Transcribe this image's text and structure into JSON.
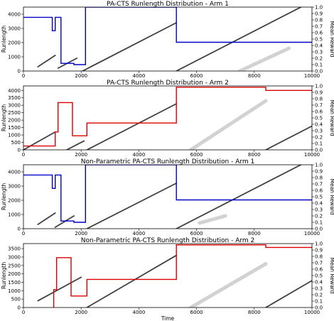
{
  "chart_data": [
    {
      "type": "line",
      "title": "PA-CTS Runlength Distribution - Arm 1",
      "xlabel": "",
      "ylabel": "Runlength",
      "y2label": "Mean Reward",
      "xlim": [
        0,
        10000
      ],
      "ylim": [
        0,
        4500
      ],
      "y2lim": [
        0,
        1.0
      ],
      "xticks": [
        0,
        2000,
        4000,
        6000,
        8000,
        10000
      ],
      "yticks": [
        0,
        1000,
        2000,
        3000,
        4000
      ],
      "y2ticks": [
        0.0,
        0.1,
        0.2,
        0.3,
        0.4,
        0.5,
        0.6,
        0.7,
        0.8,
        0.9,
        1.0
      ],
      "runlength_bands": [
        {
          "x": [
            500,
            1100
          ],
          "y": [
            300,
            1100
          ],
          "shade": "dark"
        },
        {
          "x": [
            1200,
            1850
          ],
          "y": [
            200,
            900
          ],
          "shade": "dark"
        },
        {
          "x": [
            2050,
            5300
          ],
          "y": [
            0,
            3400
          ],
          "shade": "dark"
        },
        {
          "x": [
            5300,
            10000
          ],
          "y": [
            0,
            4900
          ],
          "shade": "dark"
        },
        {
          "x": [
            7500,
            9200
          ],
          "y": [
            0,
            1600
          ],
          "shade": "light"
        }
      ],
      "series": [
        {
          "color": "#0000cc",
          "x": [
            0,
            1000,
            1000,
            1100,
            1100,
            1300,
            1300,
            1750,
            1750,
            2150,
            2150,
            5300,
            5300,
            10000
          ],
          "y": [
            0.84,
            0.84,
            0.63,
            0.63,
            0.84,
            0.84,
            0.12,
            0.12,
            0.1,
            0.1,
            1.0,
            1.0,
            0.45,
            0.45
          ]
        }
      ]
    },
    {
      "type": "line",
      "title": "PA-CTS Runlength Distribution - Arm 2",
      "xlabel": "",
      "ylabel": "Runlength",
      "y2label": "Mean Reward",
      "xlim": [
        0,
        10000
      ],
      "ylim": [
        0,
        4300
      ],
      "y2lim": [
        0,
        1.0
      ],
      "xticks": [
        0,
        2000,
        4000,
        6000,
        8000,
        10000
      ],
      "yticks": [
        0,
        500,
        1000,
        1500,
        2000,
        2500,
        3000,
        3500,
        4000
      ],
      "y2ticks": [
        0.0,
        0.1,
        0.2,
        0.3,
        0.4,
        0.5,
        0.6,
        0.7,
        0.8,
        0.9,
        1.0
      ],
      "runlength_bands": [
        {
          "x": [
            0,
            1100
          ],
          "y": [
            0,
            1200
          ],
          "shade": "dark"
        },
        {
          "x": [
            1500,
            2100
          ],
          "y": [
            0,
            600
          ],
          "shade": "dark"
        },
        {
          "x": [
            2200,
            5300
          ],
          "y": [
            0,
            3100
          ],
          "shade": "dark"
        },
        {
          "x": [
            5800,
            8400
          ],
          "y": [
            0,
            3300
          ],
          "shade": "light"
        },
        {
          "x": [
            8400,
            10000
          ],
          "y": [
            0,
            1600
          ],
          "shade": "dark"
        }
      ],
      "series": [
        {
          "color": "#dd0000",
          "x": [
            0,
            1100,
            1100,
            1200,
            1200,
            1700,
            1700,
            2200,
            2200,
            5300,
            5300,
            8400,
            8400,
            10000
          ],
          "y": [
            0.06,
            0.06,
            0.28,
            0.28,
            0.74,
            0.74,
            0.22,
            0.22,
            0.42,
            0.42,
            0.98,
            0.98,
            0.93,
            0.93
          ]
        }
      ]
    },
    {
      "type": "line",
      "title": "Non-Parametric PA-CTS Runlength Distribution - Arm 1",
      "xlabel": "",
      "ylabel": "Runlength",
      "y2label": "Mean Reward",
      "xlim": [
        0,
        10000
      ],
      "ylim": [
        0,
        4500
      ],
      "y2lim": [
        0,
        1.0
      ],
      "xticks": [
        0,
        2000,
        4000,
        6000,
        8000,
        10000
      ],
      "yticks": [
        0,
        1000,
        2000,
        3000,
        4000
      ],
      "y2ticks": [
        0.0,
        0.1,
        0.2,
        0.3,
        0.4,
        0.5,
        0.6,
        0.7,
        0.8,
        0.9,
        1.0
      ],
      "runlength_bands": [
        {
          "x": [
            500,
            1100
          ],
          "y": [
            300,
            1100
          ],
          "shade": "dark"
        },
        {
          "x": [
            1100,
            1750
          ],
          "y": [
            100,
            900
          ],
          "shade": "dark"
        },
        {
          "x": [
            2200,
            5300
          ],
          "y": [
            0,
            3200
          ],
          "shade": "dark"
        },
        {
          "x": [
            5300,
            10000
          ],
          "y": [
            0,
            4900
          ],
          "shade": "dark"
        },
        {
          "x": [
            6100,
            7000
          ],
          "y": [
            400,
            900
          ],
          "shade": "light"
        }
      ],
      "series": [
        {
          "color": "#0000cc",
          "x": [
            0,
            1000,
            1000,
            1100,
            1100,
            1300,
            1300,
            1750,
            1750,
            2150,
            2150,
            5300,
            5300,
            10000
          ],
          "y": [
            0.84,
            0.84,
            0.63,
            0.63,
            0.84,
            0.84,
            0.12,
            0.12,
            0.1,
            0.1,
            1.0,
            1.0,
            0.45,
            0.45
          ]
        }
      ]
    },
    {
      "type": "line",
      "title": "Non-Parametric PA-CTS Runlength Distribution - Arm 2",
      "xlabel": "Time",
      "ylabel": "Runlength",
      "y2label": "Mean Reward",
      "xlim": [
        0,
        10000
      ],
      "ylim": [
        0,
        3800
      ],
      "y2lim": [
        0,
        1.0
      ],
      "xticks": [
        0,
        2000,
        4000,
        6000,
        8000,
        10000
      ],
      "yticks": [
        0,
        500,
        1000,
        1500,
        2000,
        2500,
        3000,
        3500
      ],
      "y2ticks": [
        0.0,
        0.1,
        0.2,
        0.3,
        0.4,
        0.5,
        0.6,
        0.7,
        0.8,
        0.9,
        1.0
      ],
      "runlength_bands": [
        {
          "x": [
            500,
            2000
          ],
          "y": [
            400,
            1800
          ],
          "shade": "dark"
        },
        {
          "x": [
            2200,
            5300
          ],
          "y": [
            0,
            3100
          ],
          "shade": "dark"
        },
        {
          "x": [
            5800,
            8400
          ],
          "y": [
            0,
            2600
          ],
          "shade": "light"
        },
        {
          "x": [
            8400,
            10000
          ],
          "y": [
            0,
            1600
          ],
          "shade": "dark"
        }
      ],
      "series": [
        {
          "color": "#dd0000",
          "x": [
            1050,
            1050,
            1150,
            1150,
            1650,
            1650,
            2200,
            2200,
            5300,
            5300,
            8400,
            8400,
            10000
          ],
          "y": [
            0.0,
            0.28,
            0.28,
            0.78,
            0.78,
            0.18,
            0.18,
            0.44,
            0.44,
            0.98,
            0.98,
            0.94,
            0.94
          ]
        }
      ]
    }
  ]
}
